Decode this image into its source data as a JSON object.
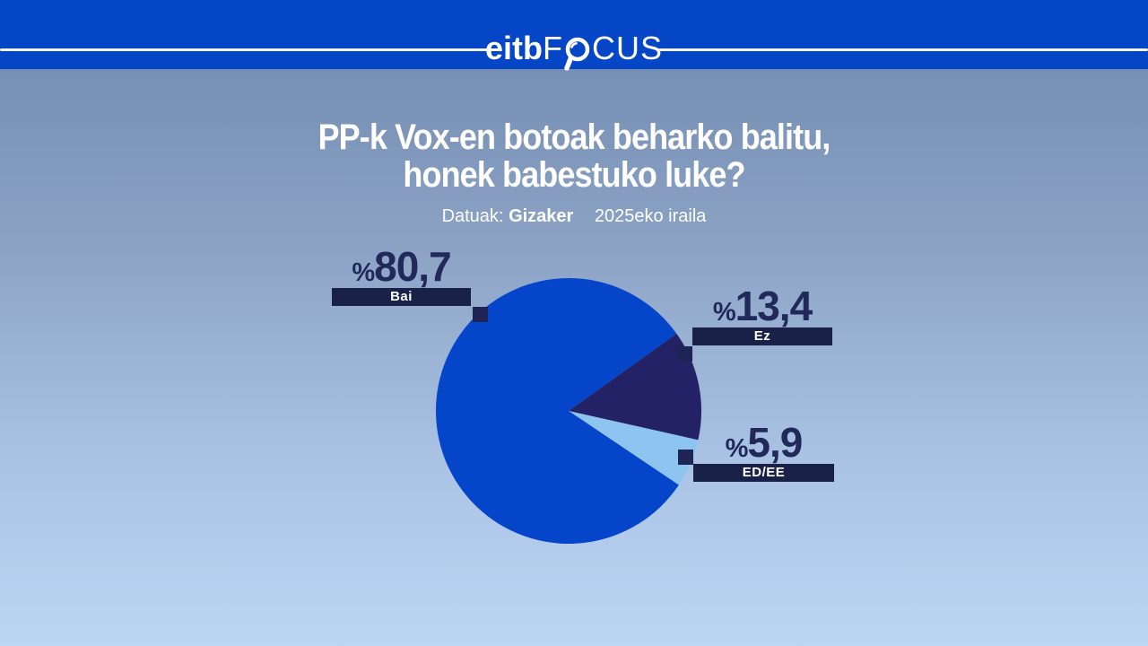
{
  "header": {
    "logo": {
      "bold_part": "eitb",
      "focus_before_o": "F",
      "focus_after_o": "CUS",
      "o_icon": "magnifying-glass"
    }
  },
  "title": {
    "line1": "PP-k Vox-en botoak beharko balitu,",
    "line2": "honek babestuko luke?"
  },
  "subtitle": {
    "source_label": "Datuak:",
    "source_name": "Gizaker",
    "date": "2025eko iraila"
  },
  "chart_data": {
    "type": "pie",
    "title": "PP-k Vox-en botoak beharko balitu, honek babestuko luke?",
    "source": "Datuak: Gizaker",
    "date": "2025eko iraila",
    "unit": "%",
    "percent_prefix": "%",
    "start_angle_deg": 54.4,
    "draw_order": [
      1,
      2,
      0
    ],
    "legend_position": "callouts",
    "slices": [
      {
        "label": "Bai",
        "value": 80.7,
        "display_value": "80,7",
        "color": "#0545c9"
      },
      {
        "label": "Ez",
        "value": 13.4,
        "display_value": "13,4",
        "color": "#232267"
      },
      {
        "label": "ED/EE",
        "value": 5.9,
        "display_value": "5,9",
        "color": "#8ec5f0"
      }
    ]
  },
  "colors": {
    "header_blue": "#0446c6",
    "background_top": "#6e87ad",
    "background_bottom": "#bdd5f5",
    "callout_bar": "#1a2148",
    "callout_square": "#1e2554",
    "value_text": "#20295a",
    "title_text": "#ffffff"
  }
}
